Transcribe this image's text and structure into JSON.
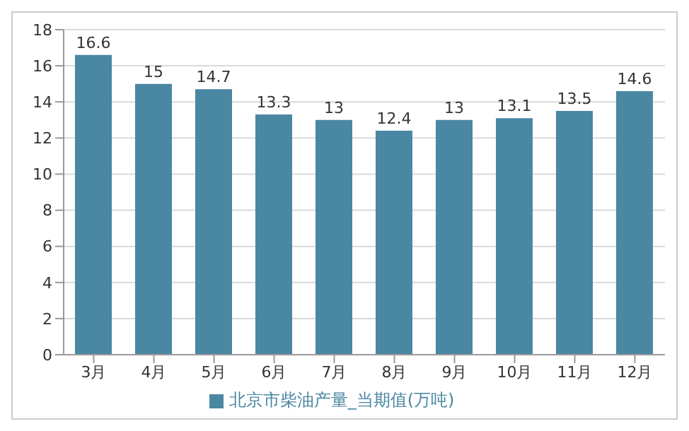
{
  "chart_data": {
    "type": "bar",
    "categories": [
      "3月",
      "4月",
      "5月",
      "6月",
      "7月",
      "8月",
      "9月",
      "10月",
      "11月",
      "12月"
    ],
    "series": [
      {
        "name": "北京市柴油产量_当期值(万吨)",
        "color": "#4a87a3",
        "values": [
          16.6,
          15,
          14.7,
          13.3,
          13,
          12.4,
          13,
          13.1,
          13.5,
          14.6
        ]
      }
    ],
    "ylim": [
      0,
      18
    ],
    "yticks": [
      0,
      2,
      4,
      6,
      8,
      10,
      12,
      14,
      16,
      18
    ],
    "grid": "y",
    "legend": "bottom",
    "data_labels": true
  }
}
